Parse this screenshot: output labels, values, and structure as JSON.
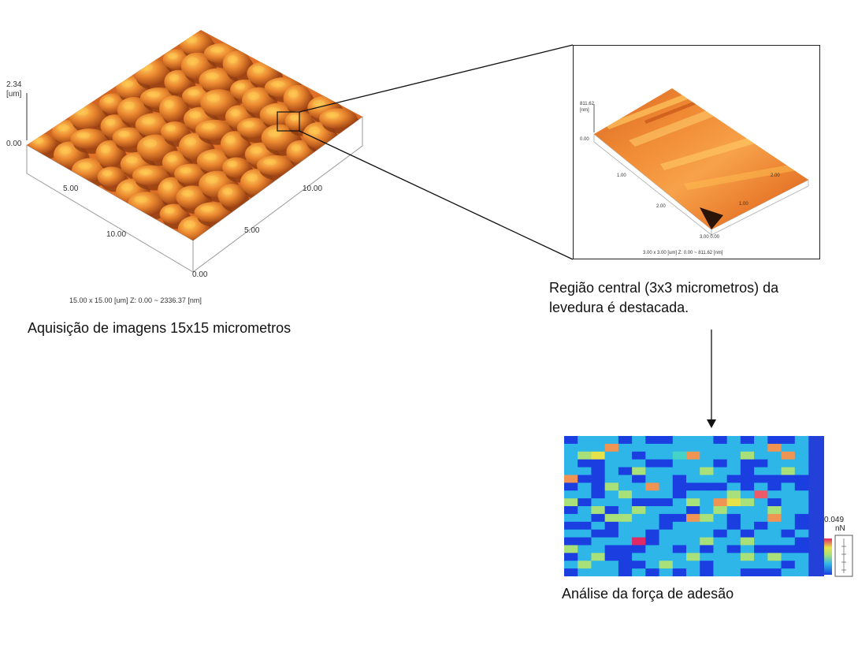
{
  "large_image": {
    "z_top_label": "2.34",
    "z_unit_label": "[um]",
    "z_zero_label": "0.00",
    "left_axis_ticks": [
      "5.00",
      "10.00"
    ],
    "right_axis_ticks": [
      "10.00",
      "5.00"
    ],
    "corner_label": "0.00",
    "footer": "15.00 x 15.00 [um]    Z: 0.00 ~ 2336.37 [nm]",
    "caption": "Aquisição de imagens 15x15 micrometros"
  },
  "zoom_image": {
    "z_top_label": "811.62",
    "z_unit_label": "[nm]",
    "z_zero_label": "0.00",
    "left_axis_ticks": [
      "1.00",
      "2.00"
    ],
    "right_axis_ticks": [
      "2.00",
      "1.00"
    ],
    "corner_label": "3.00 0.00",
    "footer": "3.00 x 3.00 [um]    Z: 0.00 ~ 811.62 [nm]",
    "caption_line1": "Região central (3x3 micrometros) da",
    "caption_line2": "levedura  é destacada."
  },
  "force_map": {
    "colorbar_max_label": "0.049",
    "colorbar_unit_label": "nN",
    "caption": "Análise da força de adesão",
    "grid": [
      "BCCCBCBBCCCBCBCBBC",
      "CCCOCCCCCCCCCCCOCC",
      "CGYCCBCCTOCCCGCCOC",
      "CBBCCCBBCCCBCBBCCC",
      "CCBCBGCCCCGCCBCCGC",
      "OBBCCBCCBCCCBBBBBB",
      "BCBGCCOCBBBBCBCBCB",
      "CCBCGCCCBCCCGCMCCC",
      "GBCCCBBBCGCOYGCBCC",
      "BCGBCGCCCBCGCCCGCC",
      "CCBGGCCBBOGCBCCOCB",
      "BBCBCCCBCCCCBCBCCB",
      "CCBBCCBCCCCBCBCCBC",
      "BBCCCRBCCCGCCGCCCB",
      "GCCBBBCCBCBCBCBBBB",
      "BCGBBCCCCGCCCGCGCC",
      "CGCCBBCGCCBCCCCCBC",
      "BCCCBCBCBCBCCBBBCC"
    ],
    "palette": {
      "B": "#1a3ee0",
      "C": "#2fb6e8",
      "T": "#45d3c8",
      "G": "#a8e07a",
      "Y": "#e8e24a",
      "O": "#f09454",
      "M": "#ee5a68",
      "R": "#e02a66"
    }
  },
  "colors": {
    "surface_light": "#ffc24a",
    "surface_mid": "#e8762a",
    "surface_dark": "#8a3810",
    "map_background": "#2340d8"
  }
}
